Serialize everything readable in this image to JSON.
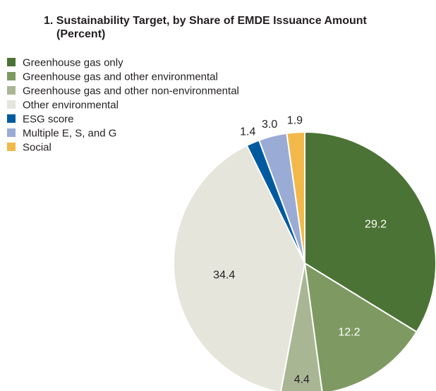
{
  "chart_data": {
    "type": "pie",
    "title": "1. Sustainability Target, by Share of EMDE Issuance Amount",
    "subtitle": "(Percent)",
    "legend_position": "top-left",
    "slices": [
      {
        "name": "Greenhouse gas only",
        "value": 29.2,
        "label": "29.2",
        "color": "#4b7335",
        "label_color": "#ffffff"
      },
      {
        "name": "Greenhouse gas and other environmental",
        "value": 12.2,
        "label": "12.2",
        "color": "#7e9a62",
        "label_color": "#ffffff"
      },
      {
        "name": "Greenhouse gas and other non-environmental",
        "value": 4.4,
        "label": "4.4",
        "color": "#a9b694",
        "label_color": "#231f20"
      },
      {
        "name": "Other environmental",
        "value": 34.4,
        "label": "34.4",
        "color": "#e5e5dc",
        "label_color": "#231f20"
      },
      {
        "name": "ESG score",
        "value": 1.4,
        "label": "1.4",
        "color": "#005aa0",
        "label_color": "#231f20"
      },
      {
        "name": "Multiple E, S, and G",
        "value": 3.0,
        "label": "3.0",
        "color": "#9aabd6",
        "label_color": "#231f20"
      },
      {
        "name": "Social",
        "value": 1.9,
        "label": "1.9",
        "color": "#f2b94a",
        "label_color": "#231f20"
      }
    ]
  }
}
